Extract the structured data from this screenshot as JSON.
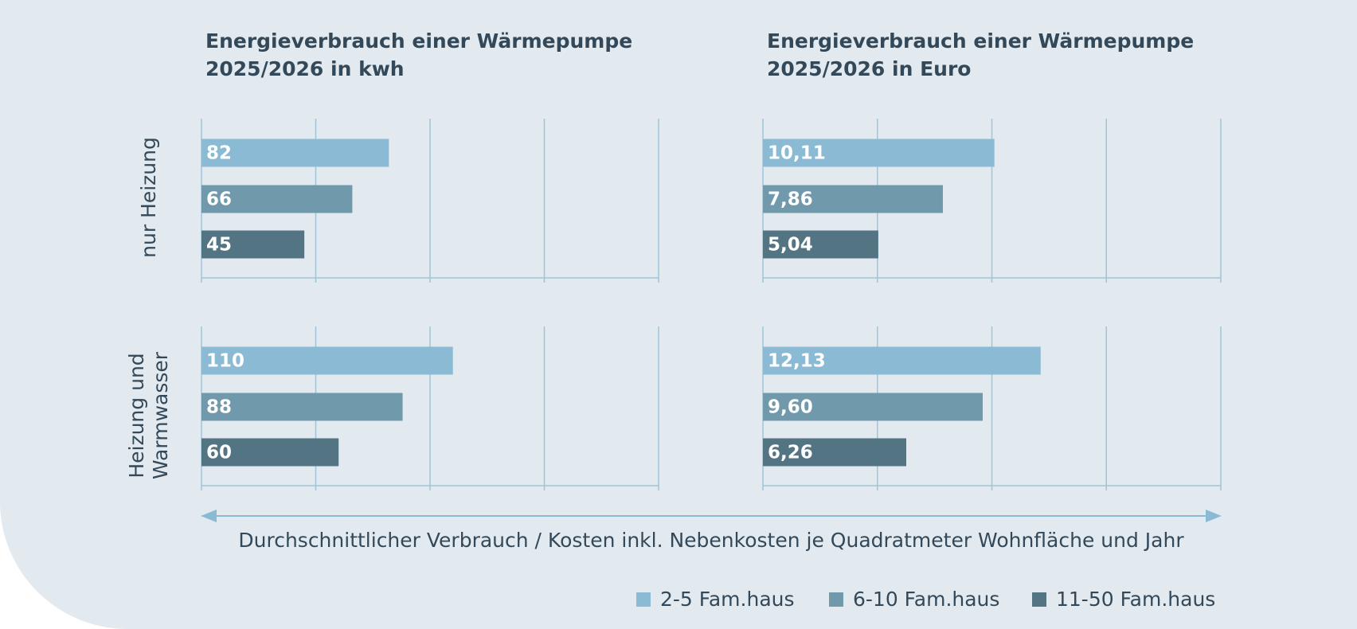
{
  "chart_data": {
    "type": "bar",
    "orientation": "horizontal",
    "categories": [
      "nur Heizung",
      "Heizung und Warmwasser"
    ],
    "x_label": "Durchschnittlicher Verbrauch / Kosten inkl. Nebenkosten je Quadratmeter Wohnfläche und Jahr",
    "grid": true,
    "legend_position": "bottom-right",
    "series": [
      {
        "name": "2-5 Fam.haus",
        "color": "#8abad4"
      },
      {
        "name": "6-10 Fam.haus",
        "color": "#7199ac"
      },
      {
        "name": "11-50 Fam.haus",
        "color": "#537483"
      }
    ],
    "panels": [
      {
        "title": "Energieverbrauch einer Wärmepumpe\n2025/2026 in kwh",
        "xlim": [
          0,
          200
        ],
        "xticks": [
          0,
          50,
          100,
          150,
          200
        ],
        "series": [
          {
            "values": [
              82,
              110
            ]
          },
          {
            "values": [
              66,
              88
            ]
          },
          {
            "values": [
              45,
              60
            ]
          }
        ]
      },
      {
        "title": "Energieverbrauch einer Wärmepumpe\n2025/2026 in Euro",
        "xlim": [
          0,
          20
        ],
        "xticks": [
          0,
          5,
          10,
          15,
          20
        ],
        "series": [
          {
            "values": [
              10.11,
              12.13
            ],
            "value_labels": [
              "10,11",
              "12,13"
            ]
          },
          {
            "values": [
              7.86,
              9.6
            ],
            "value_labels": [
              "7,86",
              "9,60"
            ]
          },
          {
            "values": [
              5.04,
              6.26
            ],
            "value_labels": [
              "5,04",
              "6,26"
            ]
          }
        ]
      }
    ]
  }
}
